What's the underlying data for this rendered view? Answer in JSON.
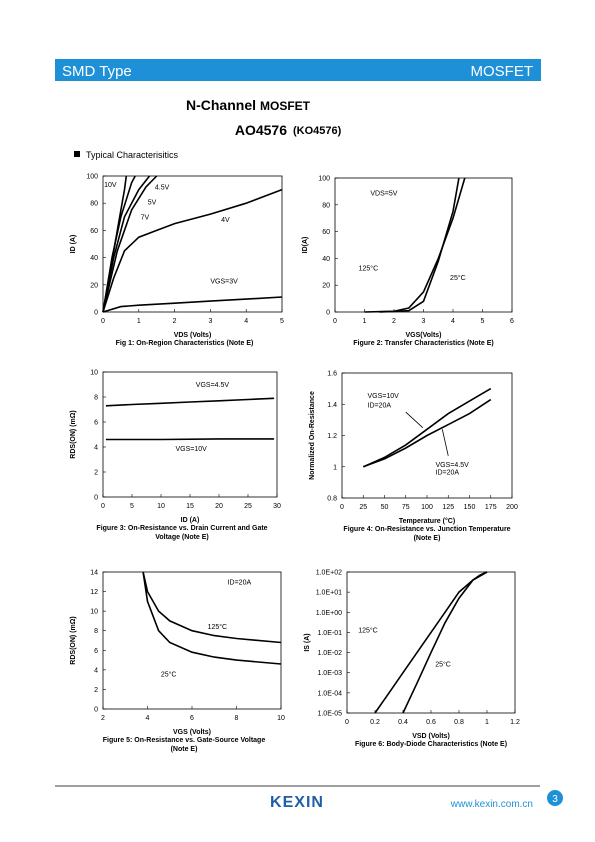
{
  "header": {
    "left": "SMD Type",
    "right": "MOSFET"
  },
  "title": {
    "main": "N-Channel",
    "suffix": "MOSFET",
    "part": "AO4576",
    "alt": "(KO4576)"
  },
  "section": "Typical Characterisitics",
  "footer": {
    "brand": "KEXIN",
    "url": "www.kexin.com.cn",
    "page": "3"
  },
  "chart_data": [
    {
      "type": "line",
      "caption": [
        "Fig 1: On-Region Characteristics (Note E)"
      ],
      "xlabel": "VDS (Volts)",
      "ylabel": "ID (A)",
      "xlim": [
        0,
        5
      ],
      "ylim": [
        0,
        100
      ],
      "xticks": [
        0,
        1,
        2,
        3,
        4,
        5
      ],
      "yticks": [
        0,
        20,
        40,
        60,
        80,
        100
      ],
      "series": [
        {
          "name": "10V",
          "color": "#000000",
          "x": [
            0,
            0.2,
            0.4,
            0.6,
            0.65
          ],
          "values": [
            0,
            30,
            60,
            90,
            100
          ]
        },
        {
          "name": "7V",
          "color": "#000000",
          "x": [
            0,
            0.25,
            0.5,
            0.8,
            0.9
          ],
          "values": [
            0,
            40,
            70,
            95,
            100
          ]
        },
        {
          "name": "5V",
          "color": "#000000",
          "x": [
            0,
            0.3,
            0.6,
            1,
            1.3
          ],
          "values": [
            0,
            40,
            70,
            90,
            100
          ]
        },
        {
          "name": "4.5V",
          "color": "#000000",
          "x": [
            0,
            0.4,
            0.8,
            1.2,
            1.5
          ],
          "values": [
            0,
            45,
            75,
            92,
            100
          ]
        },
        {
          "name": "4V",
          "color": "#000000",
          "x": [
            0,
            0.3,
            0.6,
            1,
            1.5,
            2,
            3,
            4,
            5
          ],
          "values": [
            0,
            25,
            45,
            55,
            60,
            65,
            72,
            80,
            90
          ]
        },
        {
          "name": "VGS=3V",
          "color": "#000000",
          "x": [
            0,
            0.5,
            1,
            2,
            3,
            4,
            5
          ],
          "values": [
            0,
            4,
            5,
            6.5,
            8,
            9.5,
            11
          ]
        }
      ],
      "annotations": []
    },
    {
      "type": "line",
      "caption": [
        "Figure 2: Transfer Characteristics (Note E)"
      ],
      "xlabel": "VGS(Volts)",
      "ylabel": "ID(A)",
      "xlim": [
        0,
        6
      ],
      "ylim": [
        0,
        100
      ],
      "xticks": [
        0,
        1,
        2,
        3,
        4,
        5,
        6
      ],
      "yticks": [
        0,
        20,
        40,
        60,
        80,
        100
      ],
      "series": [
        {
          "name": "125°C",
          "color": "#000000",
          "x": [
            1,
            2,
            2.5,
            3,
            3.5,
            4,
            4.4
          ],
          "values": [
            0,
            0.5,
            3,
            15,
            40,
            70,
            100
          ]
        },
        {
          "name": "25°C",
          "color": "#000000",
          "x": [
            1.5,
            2.5,
            3,
            3.5,
            4,
            4.2
          ],
          "values": [
            0,
            1,
            8,
            38,
            75,
            100
          ]
        }
      ],
      "annotations": [
        "VDS=5V"
      ]
    },
    {
      "type": "line",
      "caption": [
        "Figure 3: On-Resistance vs. Drain Current and Gate",
        "Voltage (Note E)"
      ],
      "xlabel": "ID (A)",
      "ylabel": "RDS(ON) (mΩ)",
      "xlim": [
        0,
        30
      ],
      "ylim": [
        0,
        10
      ],
      "xticks": [
        0,
        5,
        10,
        15,
        20,
        25,
        30
      ],
      "yticks": [
        0,
        2,
        4,
        6,
        8,
        10
      ],
      "series": [
        {
          "name": "VGS=4.5V",
          "color": "#000000",
          "x": [
            0.5,
            5,
            10,
            15,
            20,
            25,
            29.5
          ],
          "values": [
            7.3,
            7.4,
            7.5,
            7.6,
            7.7,
            7.8,
            7.9
          ]
        },
        {
          "name": "VGS=10V",
          "color": "#000000",
          "x": [
            0.5,
            10,
            20,
            29.5
          ],
          "values": [
            4.6,
            4.6,
            4.65,
            4.65
          ]
        }
      ],
      "annotations": []
    },
    {
      "type": "line",
      "caption": [
        "Figure 4: On-Resistance vs. Junction Temperature",
        "(Note E)"
      ],
      "xlabel": "Temperature (°C)",
      "ylabel": "Normalized On-Resistance",
      "xlim": [
        0,
        200
      ],
      "ylim": [
        0.8,
        1.6
      ],
      "xticks": [
        0,
        25,
        50,
        75,
        100,
        125,
        150,
        175,
        200
      ],
      "yticks": [
        0.8,
        1,
        1.2,
        1.4,
        1.6
      ],
      "series": [
        {
          "name": "VGS=10V",
          "color": "#000000",
          "x": [
            25,
            50,
            75,
            100,
            125,
            150,
            175
          ],
          "values": [
            1,
            1.06,
            1.14,
            1.24,
            1.34,
            1.42,
            1.5
          ]
        },
        {
          "name": "VGS=4.5V",
          "color": "#000000",
          "x": [
            25,
            50,
            75,
            100,
            125,
            150,
            175
          ],
          "values": [
            1,
            1.05,
            1.12,
            1.2,
            1.27,
            1.34,
            1.43
          ]
        }
      ],
      "annotations": [
        "ID=20A",
        "ID=20A"
      ]
    },
    {
      "type": "line",
      "caption": [
        "Figure 5: On-Resistance vs. Gate-Source Voltage",
        "(Note E)"
      ],
      "xlabel": "VGS (Volts)",
      "ylabel": "RDS(ON) (mΩ)",
      "xlim": [
        2,
        10
      ],
      "ylim": [
        0,
        14
      ],
      "xticks": [
        2,
        4,
        6,
        8,
        10
      ],
      "yticks": [
        0,
        2,
        4,
        6,
        8,
        10,
        12,
        14
      ],
      "series": [
        {
          "name": "125°C",
          "color": "#000000",
          "x": [
            3.8,
            4,
            4.5,
            5,
            6,
            7,
            8,
            10
          ],
          "values": [
            14,
            12,
            10,
            9,
            8,
            7.5,
            7.2,
            6.8
          ]
        },
        {
          "name": "25°C",
          "color": "#000000",
          "x": [
            3.8,
            4,
            4.5,
            5,
            6,
            7,
            8,
            10
          ],
          "values": [
            14,
            11,
            8,
            6.8,
            5.8,
            5.3,
            5,
            4.6
          ]
        }
      ],
      "annotations": [
        "ID=20A"
      ]
    },
    {
      "type": "line",
      "caption": [
        "Figure 6: Body-Diode Characteristics (Note E)"
      ],
      "xlabel": "VSD (Volts)",
      "ylabel": "IS (A)",
      "xlim": [
        0,
        1.2
      ],
      "ylim": [
        1e-05,
        100
      ],
      "yscale": "log",
      "xticks": [
        0,
        0.2,
        0.4,
        0.6,
        0.8,
        1,
        1.2
      ],
      "yticks": [
        {
          "value": 1e-05,
          "label": "1.0E-05"
        },
        {
          "value": 0.0001,
          "label": "1.0E-04"
        },
        {
          "value": 0.001,
          "label": "1.0E-03"
        },
        {
          "value": 0.01,
          "label": "1.0E-02"
        },
        {
          "value": 0.1,
          "label": "1.0E-01"
        },
        {
          "value": 1,
          "label": "1.0E+00"
        },
        {
          "value": 10,
          "label": "1.0E+01"
        },
        {
          "value": 100,
          "label": "1.0E+02"
        }
      ],
      "series": [
        {
          "name": "125°C",
          "color": "#000000",
          "x": [
            0.2,
            0.3,
            0.4,
            0.5,
            0.6,
            0.7,
            0.8,
            0.9,
            0.95,
            1
          ],
          "values": [
            1e-05,
            0.0001,
            0.001,
            0.01,
            0.1,
            1,
            10,
            40,
            70,
            100
          ]
        },
        {
          "name": "25°C",
          "color": "#000000",
          "x": [
            0.4,
            0.5,
            0.6,
            0.7,
            0.8,
            0.9,
            1
          ],
          "values": [
            1e-05,
            0.0003,
            0.01,
            0.3,
            5,
            40,
            100
          ]
        }
      ],
      "annotations": []
    }
  ]
}
